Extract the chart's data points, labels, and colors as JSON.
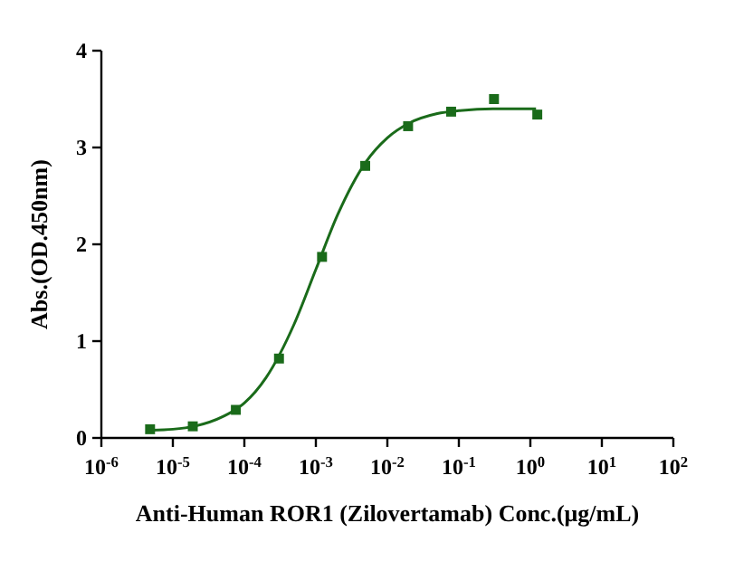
{
  "chart_data": {
    "type": "scatter",
    "xlabel": "Anti-Human ROR1 (Zilovertamab) Conc.(μg/mL)",
    "ylabel": "Abs.(OD.450nm)",
    "log": "x",
    "xlim": [
      1e-06,
      100
    ],
    "ylim": [
      0,
      4
    ],
    "yticks": [
      0,
      1,
      2,
      3,
      4
    ],
    "xticks": [
      {
        "value": 1e-06,
        "label": "10$^{-6}$"
      },
      {
        "value": 1e-05,
        "label": "10$^{-5}$"
      },
      {
        "value": 0.0001,
        "label": "10$^{-4}$"
      },
      {
        "value": 0.001,
        "label": "10$^{-3}$"
      },
      {
        "value": 0.01,
        "label": "10$^{-2}$"
      },
      {
        "value": 0.1,
        "label": "10$^{-1}$"
      },
      {
        "value": 1,
        "label": "10$^{0}$"
      },
      {
        "value": 10,
        "label": "10$^{1}$"
      },
      {
        "value": 100,
        "label": "10$^{2}$"
      }
    ],
    "grid": false,
    "series": [
      {
        "marker": "square",
        "color": "#1a6b1a",
        "x": [
          4.8e-06,
          1.9e-05,
          7.6e-05,
          0.000305,
          0.00122,
          0.0049,
          0.0195,
          0.078,
          0.31,
          1.25
        ],
        "values": [
          0.09,
          0.12,
          0.29,
          0.82,
          1.87,
          2.81,
          3.22,
          3.37,
          3.5,
          3.34
        ]
      },
      {
        "type": "line",
        "color": "#1a6b1a",
        "x": [
          5e-06,
          1e-05,
          2e-05,
          5e-05,
          0.0001,
          0.0002,
          0.0005,
          0.001,
          0.002,
          0.005,
          0.01,
          0.02,
          0.05,
          0.1,
          0.3,
          1.2
        ],
        "values": [
          0.08,
          0.09,
          0.12,
          0.22,
          0.36,
          0.62,
          1.18,
          1.74,
          2.3,
          2.85,
          3.1,
          3.25,
          3.35,
          3.38,
          3.4,
          3.4
        ]
      }
    ]
  }
}
